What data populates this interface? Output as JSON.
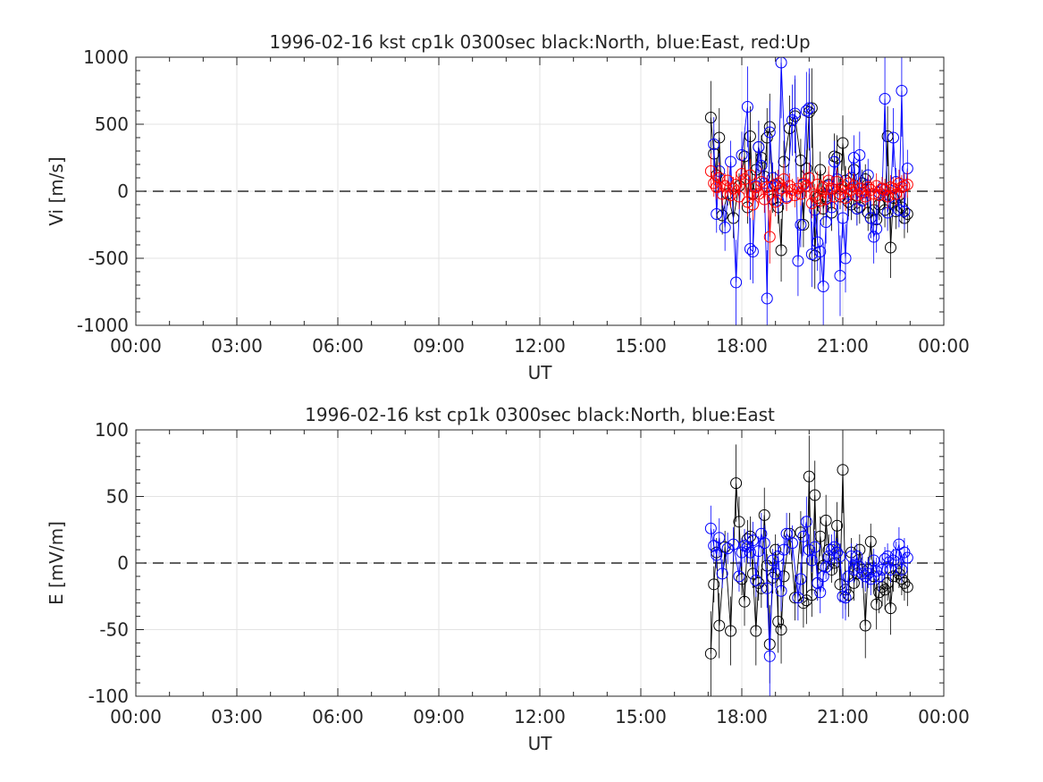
{
  "chart_data": [
    {
      "type": "scatter",
      "title": "1996-02-16 kst cp1k 0300sec black:North, blue:East, red:Up",
      "xlabel": "UT",
      "ylabel": "Vi [m/s]",
      "xlim_hours": [
        0,
        24
      ],
      "ylim": [
        -1000,
        1000
      ],
      "yticks": [
        -1000,
        -500,
        0,
        500,
        1000
      ],
      "ytick_labels": [
        "-1000",
        "-500",
        "0",
        "500",
        "1000"
      ],
      "xtick_labels": [
        "00:00",
        "03:00",
        "06:00",
        "09:00",
        "12:00",
        "15:00",
        "18:00",
        "21:00",
        "00:00"
      ],
      "grid": true,
      "zero_line": "dashed",
      "series": [
        {
          "color": "#000000",
          "x": [
            17.08,
            17.17,
            17.25,
            17.33,
            17.42,
            17.58,
            17.75,
            17.92,
            18.08,
            18.17,
            18.25,
            18.33,
            18.42,
            18.5,
            18.58,
            18.67,
            18.75,
            18.83,
            18.92,
            19.0,
            19.08,
            19.17,
            19.25,
            19.42,
            19.58,
            19.75,
            19.83,
            19.92,
            20.0,
            20.08,
            20.17,
            20.25,
            20.33,
            20.42,
            20.5,
            20.58,
            20.67,
            20.75,
            20.83,
            20.92,
            21.0,
            21.08,
            21.17,
            21.25,
            21.33,
            21.42,
            21.5,
            21.58,
            21.67,
            21.75,
            21.83,
            21.92,
            22.0,
            22.08,
            22.17,
            22.25,
            22.33,
            22.42,
            22.5,
            22.58,
            22.67,
            22.75,
            22.83,
            22.92
          ],
          "y": [
            550,
            280,
            120,
            400,
            -180,
            -20,
            -200,
            40,
            260,
            -120,
            410,
            -20,
            160,
            330,
            250,
            110,
            400,
            480,
            -60,
            50,
            -120,
            -440,
            220,
            470,
            560,
            230,
            -250,
            170,
            590,
            620,
            -480,
            -50,
            160,
            -130,
            -40,
            50,
            -160,
            260,
            250,
            -40,
            360,
            80,
            -80,
            -100,
            160,
            -130,
            -120,
            60,
            90,
            -160,
            -200,
            -140,
            -210,
            -100,
            20,
            -140,
            410,
            -420,
            -50,
            -150,
            -30,
            -120,
            -200,
            -170
          ]
        },
        {
          "color": "#0000ff",
          "x": [
            17.17,
            17.25,
            17.33,
            17.5,
            17.67,
            17.83,
            18.0,
            18.17,
            18.25,
            18.33,
            18.42,
            18.5,
            18.58,
            18.67,
            18.75,
            18.83,
            18.92,
            19.0,
            19.08,
            19.17,
            19.33,
            19.5,
            19.58,
            19.67,
            19.75,
            19.83,
            19.92,
            20.0,
            20.08,
            20.17,
            20.25,
            20.33,
            20.42,
            20.5,
            20.58,
            20.67,
            20.75,
            20.83,
            20.92,
            21.0,
            21.08,
            21.17,
            21.25,
            21.33,
            21.42,
            21.5,
            21.58,
            21.67,
            21.75,
            21.83,
            21.92,
            22.0,
            22.08,
            22.17,
            22.25,
            22.33,
            22.42,
            22.5,
            22.58,
            22.67,
            22.75,
            22.83,
            22.92
          ],
          "y": [
            350,
            -170,
            150,
            -270,
            220,
            -680,
            270,
            630,
            -430,
            -450,
            40,
            330,
            190,
            60,
            -800,
            440,
            100,
            40,
            -70,
            960,
            -40,
            530,
            580,
            -520,
            -250,
            50,
            600,
            620,
            -470,
            -140,
            -380,
            -450,
            -710,
            -230,
            40,
            -120,
            220,
            90,
            -630,
            -200,
            -500,
            -20,
            100,
            250,
            -130,
            270,
            -70,
            -10,
            120,
            -200,
            -340,
            -280,
            -10,
            10,
            690,
            -160,
            -40,
            400,
            70,
            -140,
            750,
            -150,
            170
          ]
        },
        {
          "color": "#ff0000",
          "x": [
            17.08,
            17.17,
            17.25,
            17.33,
            17.42,
            17.5,
            17.58,
            17.67,
            17.75,
            17.83,
            17.92,
            18.0,
            18.08,
            18.17,
            18.25,
            18.33,
            18.42,
            18.5,
            18.58,
            18.67,
            18.75,
            18.83,
            18.92,
            19.0,
            19.08,
            19.17,
            19.25,
            19.33,
            19.42,
            19.5,
            19.58,
            19.67,
            19.75,
            19.83,
            19.92,
            20.0,
            20.08,
            20.17,
            20.25,
            20.33,
            20.42,
            20.5,
            20.58,
            20.67,
            20.75,
            20.83,
            20.92,
            21.0,
            21.08,
            21.17,
            21.25,
            21.33,
            21.42,
            21.5,
            21.58,
            21.67,
            21.75,
            21.83,
            21.92,
            22.0,
            22.08,
            22.17,
            22.25,
            22.33,
            22.42,
            22.5,
            22.58,
            22.67,
            22.75,
            22.83,
            22.92
          ],
          "y": [
            150,
            60,
            30,
            100,
            -20,
            40,
            80,
            -30,
            20,
            50,
            -40,
            130,
            90,
            -80,
            120,
            -100,
            30,
            -20,
            70,
            -60,
            30,
            -340,
            40,
            -80,
            60,
            20,
            90,
            -50,
            40,
            10,
            -30,
            20,
            -20,
            60,
            40,
            100,
            -90,
            -40,
            50,
            -70,
            30,
            -60,
            80,
            20,
            -40,
            70,
            -20,
            30,
            -50,
            60,
            10,
            40,
            -30,
            20,
            -10,
            -40,
            30,
            10,
            -20,
            40,
            -30,
            20,
            10,
            -40,
            30,
            20,
            -20,
            60,
            30,
            40,
            50
          ]
        }
      ]
    },
    {
      "type": "scatter",
      "title": "1996-02-16 kst cp1k 0300sec black:North, blue:East",
      "xlabel": "UT",
      "ylabel": "E [mV/m]",
      "xlim_hours": [
        0,
        24
      ],
      "ylim": [
        -100,
        100
      ],
      "yticks": [
        -100,
        -50,
        0,
        50,
        100
      ],
      "ytick_labels": [
        "-100",
        "-50",
        "0",
        "50",
        "100"
      ],
      "xtick_labels": [
        "00:00",
        "03:00",
        "06:00",
        "09:00",
        "12:00",
        "15:00",
        "18:00",
        "21:00",
        "00:00"
      ],
      "grid": true,
      "zero_line": "dashed",
      "series": [
        {
          "color": "#000000",
          "x": [
            17.08,
            17.17,
            17.25,
            17.33,
            17.5,
            17.67,
            17.83,
            17.92,
            18.0,
            18.08,
            18.17,
            18.25,
            18.33,
            18.42,
            18.5,
            18.58,
            18.67,
            18.75,
            18.83,
            18.92,
            19.0,
            19.08,
            19.17,
            19.25,
            19.42,
            19.58,
            19.75,
            19.83,
            19.92,
            20.0,
            20.08,
            20.17,
            20.25,
            20.33,
            20.42,
            20.5,
            20.58,
            20.67,
            20.75,
            20.83,
            20.92,
            21.0,
            21.08,
            21.17,
            21.25,
            21.33,
            21.42,
            21.5,
            21.58,
            21.67,
            21.75,
            21.83,
            21.92,
            22.0,
            22.08,
            22.17,
            22.25,
            22.33,
            22.42,
            22.5,
            22.58,
            22.67,
            22.75,
            22.83,
            22.92
          ],
          "y": [
            -68,
            -16,
            8,
            -47,
            12,
            -51,
            60,
            31,
            -12,
            -29,
            18,
            20,
            -8,
            -51,
            -15,
            -19,
            36,
            -2,
            -61,
            -11,
            10,
            -44,
            -50,
            -10,
            22,
            -26,
            23,
            -30,
            -28,
            65,
            -24,
            51,
            -15,
            20,
            -2,
            32,
            10,
            -5,
            0,
            28,
            -16,
            70,
            -20,
            -24,
            8,
            -15,
            -8,
            10,
            -5,
            -47,
            -5,
            16,
            -10,
            -31,
            -22,
            -18,
            -20,
            -15,
            -34,
            -10,
            -5,
            -8,
            -12,
            -15,
            -18
          ]
        },
        {
          "color": "#0000ff",
          "x": [
            17.08,
            17.17,
            17.25,
            17.33,
            17.42,
            17.58,
            17.75,
            17.92,
            18.0,
            18.08,
            18.17,
            18.25,
            18.33,
            18.42,
            18.5,
            18.58,
            18.67,
            18.75,
            18.83,
            18.92,
            19.0,
            19.08,
            19.17,
            19.25,
            19.33,
            19.5,
            19.67,
            19.75,
            19.83,
            19.92,
            20.0,
            20.08,
            20.17,
            20.25,
            20.33,
            20.42,
            20.5,
            20.58,
            20.67,
            20.75,
            20.83,
            20.92,
            21.0,
            21.08,
            21.17,
            21.25,
            21.33,
            21.42,
            21.5,
            21.58,
            21.67,
            21.75,
            21.83,
            21.92,
            22.0,
            22.08,
            22.17,
            22.25,
            22.33,
            22.42,
            22.5,
            22.58,
            22.67,
            22.75,
            22.83,
            22.92
          ],
          "y": [
            26,
            13,
            6,
            19,
            -8,
            11,
            14,
            -10,
            8,
            13,
            12,
            8,
            17,
            -13,
            9,
            22,
            15,
            -19,
            -70,
            2,
            -8,
            5,
            -21,
            10,
            22,
            15,
            -26,
            -12,
            20,
            31,
            10,
            2,
            12,
            -15,
            -22,
            -10,
            -3,
            5,
            10,
            12,
            8,
            5,
            -25,
            -26,
            -10,
            5,
            -5,
            5,
            -3,
            -8,
            -10,
            -8,
            -12,
            2,
            -6,
            -10,
            -5,
            3,
            5,
            -5,
            2,
            6,
            14,
            -5,
            8,
            4
          ]
        }
      ]
    }
  ]
}
